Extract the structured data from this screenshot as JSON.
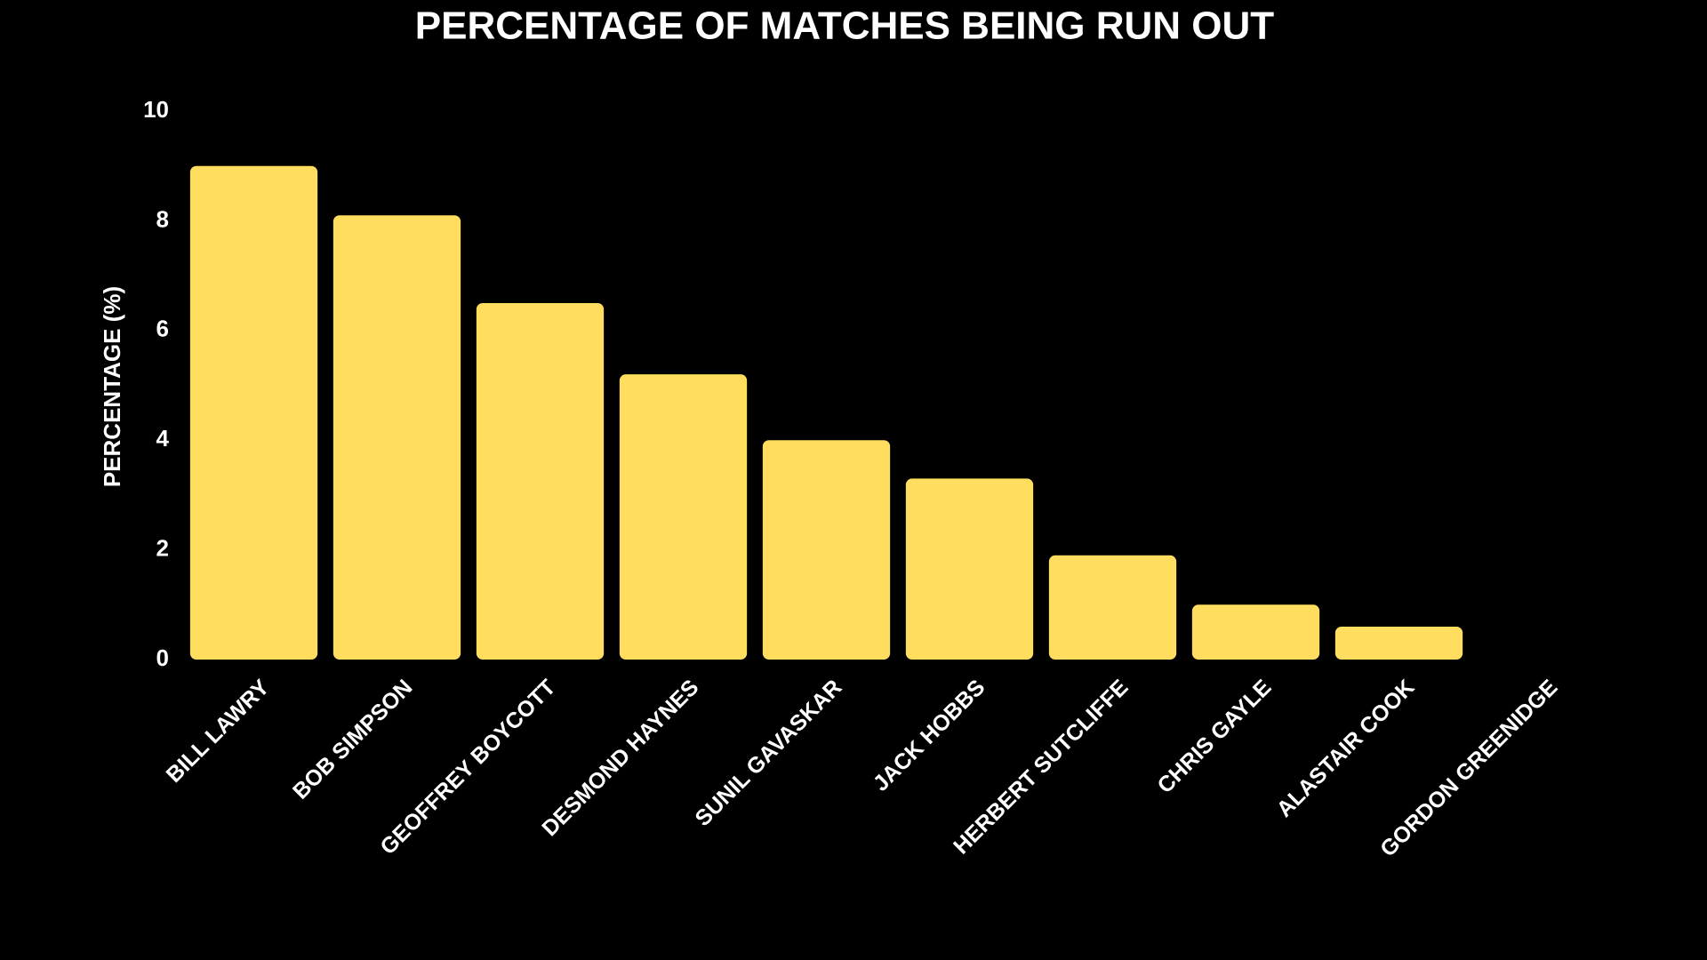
{
  "chart_data": {
    "type": "bar",
    "title": "PERCENTAGE OF MATCHES BEING RUN OUT",
    "y_label": "PERCENTAGE (%)",
    "categories": [
      "BILL LAWRY",
      "BOB SIMPSON",
      "GEOFFREY BOYCOTT",
      "DESMOND HAYNES",
      "SUNIL GAVASKAR",
      "JACK HOBBS",
      "HERBERT SUTCLIFFE",
      "CHRIS GAYLE",
      "ALASTAIR COOK",
      "GORDON GREENIDGE"
    ],
    "values": [
      9.0,
      8.1,
      6.5,
      5.2,
      4.0,
      3.3,
      1.9,
      1.0,
      0.6,
      0
    ],
    "color": "#ffdd5e",
    "ylim": [
      0,
      10
    ],
    "yticks": [
      0,
      2,
      4,
      6,
      8,
      10
    ],
    "grid": false
  }
}
